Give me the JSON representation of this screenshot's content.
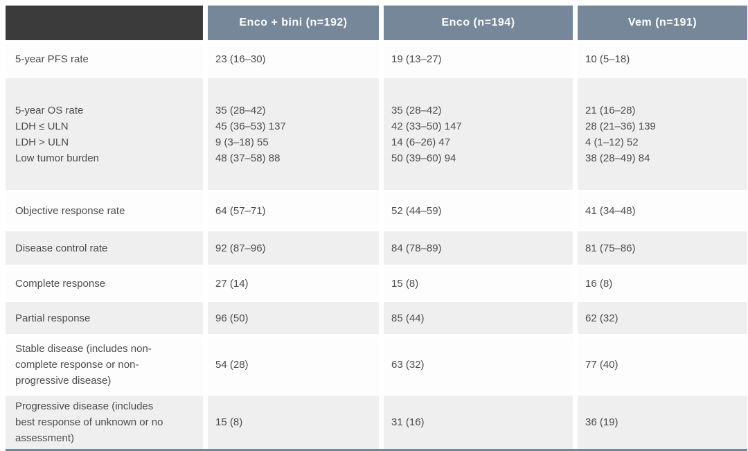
{
  "colors": {
    "header-dark": "#3b3b3b",
    "header-slate": "#76879a",
    "row-gray": "#efefef",
    "row-white": "#fdfdfd",
    "text": "#4c4c4c",
    "rule": "#73879a"
  },
  "table": {
    "columns": [
      "",
      "Enco + bini (n=192)",
      "Enco (n=194)",
      "Vem (n=191)"
    ],
    "rows": [
      {
        "label": "5-year PFS rate",
        "values": [
          "23 (16–30)",
          "19 (13–27)",
          "10 (5–18)"
        ]
      },
      {
        "label": [
          "5-year OS rate",
          "LDH ≤ ULN",
          "LDH > ULN",
          "Low tumor burden"
        ],
        "values": [
          [
            "35 (28–42)",
            "45 (36–53) 137",
            "9 (3–18) 55",
            "48 (37–58) 88"
          ],
          [
            "35 (28–42)",
            "42 (33–50) 147",
            "14 (6–26) 47",
            "50 (39–60) 94"
          ],
          [
            "21 (16–28)",
            "28 (21–36) 139",
            "4 (1–12) 52",
            "38 (28–49) 84"
          ]
        ]
      },
      {
        "label": "Objective response rate",
        "values": [
          "64 (57–71)",
          "52 (44–59)",
          "41 (34–48)"
        ]
      },
      {
        "label": "Disease control rate",
        "values": [
          "92 (87–96)",
          "84 (78–89)",
          "81 (75–86)"
        ]
      },
      {
        "label": "Complete response",
        "values": [
          "27 (14)",
          "15 (8)",
          "16 (8)"
        ]
      },
      {
        "label": "Partial response",
        "values": [
          "96 (50)",
          "85 (44)",
          "62 (32)"
        ]
      },
      {
        "label": "Stable disease (includes non-complete response or non-progressive disease)",
        "values": [
          "54 (28)",
          "63 (32)",
          "77 (40)"
        ]
      },
      {
        "label": "Progressive disease (includes best response of unknown or no assessment)",
        "values": [
          "15 (8)",
          "31 (16)",
          "36 (19)"
        ]
      }
    ]
  }
}
